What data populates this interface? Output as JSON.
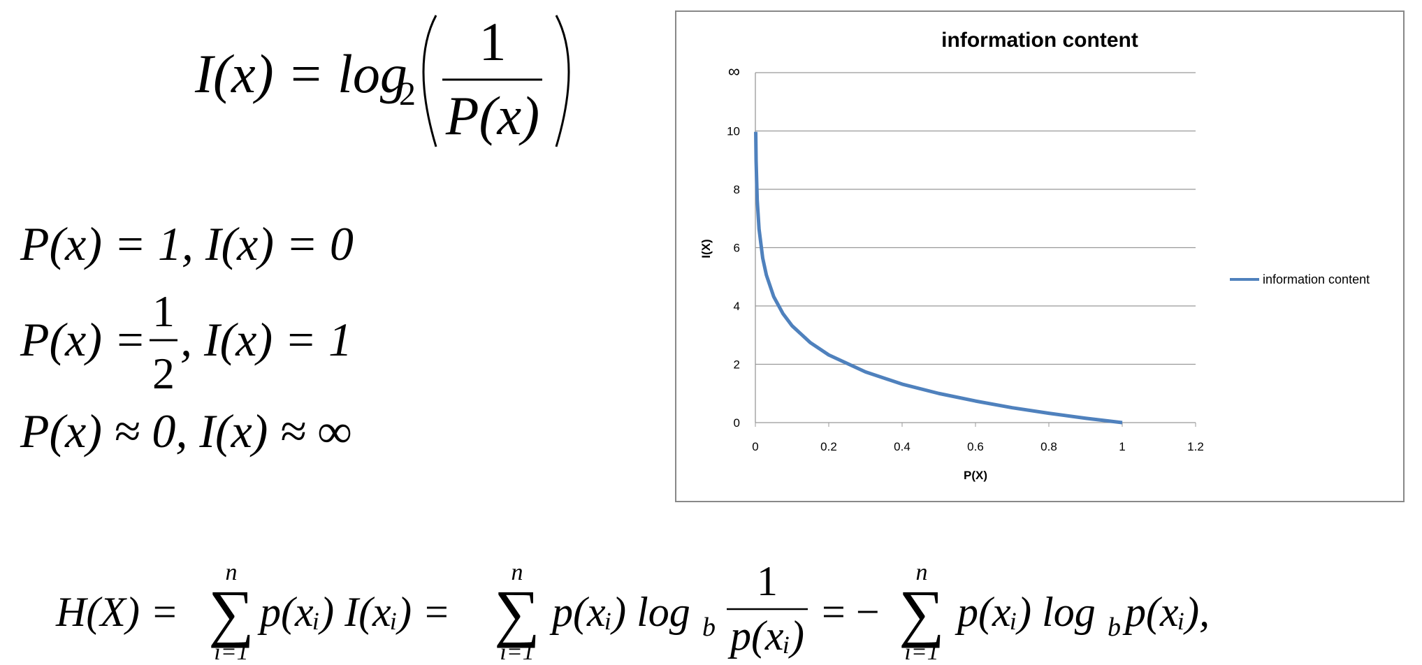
{
  "formulas": {
    "information": {
      "lhs": "I(x) = log",
      "base": "2",
      "numerator": "1",
      "denominator": "P(x)"
    },
    "cases": [
      {
        "text": "P(x) = 1, I(x) = 0"
      },
      {
        "lhs": "P(x) =",
        "numerator": "1",
        "denominator": "2",
        "rhs": ", I(x) = 1"
      },
      {
        "text": "P(x) ≈ 0, I(x) ≈ ∞"
      }
    ],
    "entropy": {
      "lhs": "H(X) =",
      "sum_top": "n",
      "sum_bottom": "i=1",
      "term1": "p(xᵢ) I(xᵢ) =",
      "term2": "p(xᵢ) log",
      "base": "b",
      "numerator": "1",
      "denominator": "p(xᵢ)",
      "minus": "= −",
      "term3": "p(xᵢ) log",
      "term4": "p(xᵢ),"
    }
  },
  "chart_data": {
    "type": "line",
    "title": "information content",
    "x_label": "P(X)",
    "y_label": "I(X)",
    "x": [
      0.001,
      0.002,
      0.005,
      0.01,
      0.02,
      0.03,
      0.05,
      0.075,
      0.1,
      0.15,
      0.2,
      0.3,
      0.4,
      0.5,
      0.6,
      0.7,
      0.8,
      0.9,
      1
    ],
    "series": [
      {
        "name": "information content",
        "color": "#4f81bd",
        "values": [
          9.97,
          8.97,
          7.64,
          6.64,
          5.64,
          5.06,
          4.32,
          3.74,
          3.32,
          2.74,
          2.32,
          1.74,
          1.32,
          1,
          0.74,
          0.51,
          0.32,
          0.15,
          0
        ]
      }
    ],
    "xlim": [
      0,
      1.2
    ],
    "xticks": [
      0,
      0.2,
      0.4,
      0.6,
      0.8,
      1,
      1.2
    ],
    "ylim": [
      0,
      12
    ],
    "yticks": [
      0,
      2,
      4,
      6,
      8,
      10,
      {
        "value": 12,
        "label": "∞"
      }
    ],
    "grid": true,
    "legend": "right"
  }
}
